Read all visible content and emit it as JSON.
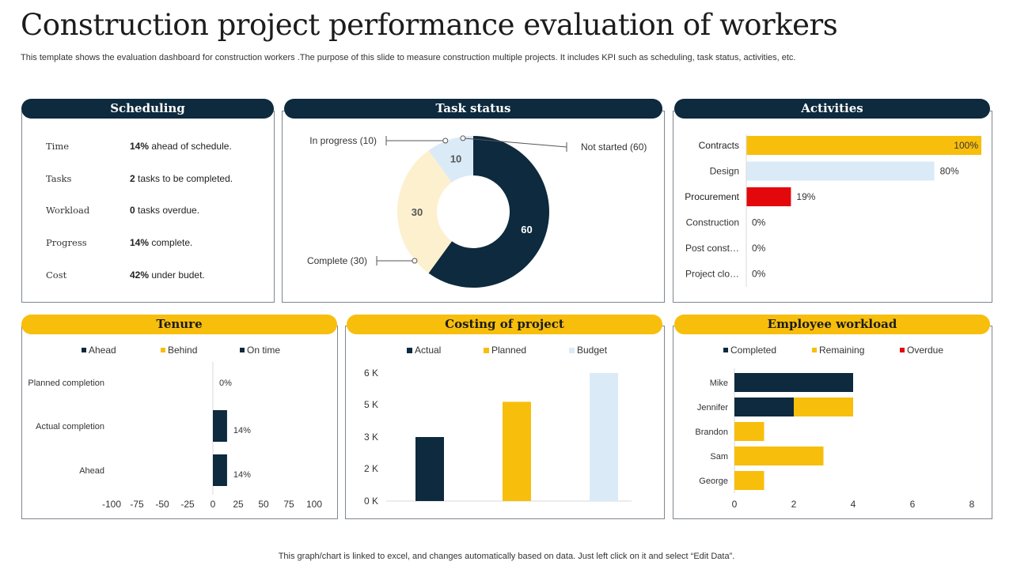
{
  "page": {
    "title": "Construction project performance evaluation of workers",
    "subtitle": "This template shows the evaluation dashboard for construction workers .The purpose of this slide to measure construction multiple projects. It includes KPI such as scheduling, task status, activities, etc.",
    "footer": "This graph/chart is linked to excel, and changes automatically based on data. Just left click on it and select “Edit Data”."
  },
  "colors": {
    "navy": "#0d2a3e",
    "gold": "#f8be0c",
    "light_blue": "#daeaf7",
    "cream": "#fdf0cf",
    "red": "#e3080c"
  },
  "scheduling": {
    "header": "Scheduling",
    "rows": [
      {
        "label": "Time",
        "value_bold": "14%",
        "value_text": " ahead of schedule."
      },
      {
        "label": "Tasks",
        "value_bold": "2",
        "value_text": " tasks to be completed."
      },
      {
        "label": "Workload",
        "value_bold": "0",
        "value_text": " tasks overdue."
      },
      {
        "label": "Progress",
        "value_bold": "14%",
        "value_text": " complete."
      },
      {
        "label": "Cost",
        "value_bold": "42%",
        "value_text": " under budet."
      }
    ]
  },
  "chart_data": [
    {
      "id": "task_status",
      "type": "pie",
      "donut": true,
      "title": "Task status",
      "slices": [
        {
          "name": "Not started",
          "value": 60,
          "label": "60",
          "callout": "Not started (60)",
          "color": "#0d2a3e"
        },
        {
          "name": "Complete",
          "value": 30,
          "label": "30",
          "callout": "Complete (30)",
          "color": "#fdf0cf"
        },
        {
          "name": "In progress",
          "value": 10,
          "label": "10",
          "callout": "In progress (10)",
          "color": "#daeaf7"
        }
      ]
    },
    {
      "id": "activities",
      "type": "bar",
      "orientation": "horizontal",
      "title": "Activities",
      "categories": [
        "Contracts",
        "Design",
        "Procurement",
        "Construction",
        "Post const…",
        "Project clo…"
      ],
      "values": [
        100,
        80,
        19,
        0,
        0,
        0
      ],
      "value_labels": [
        "100%",
        "80%",
        "19%",
        "0%",
        "0%",
        "0%"
      ],
      "colors": [
        "#f8be0c",
        "#daeaf7",
        "#e3080c",
        "#0d2a3e",
        "#0d2a3e",
        "#0d2a3e"
      ],
      "xlim": [
        0,
        100
      ]
    },
    {
      "id": "tenure",
      "type": "bar",
      "orientation": "horizontal",
      "title": "Tenure",
      "legend": [
        "Ahead",
        "Behind",
        "On time"
      ],
      "legend_colors": [
        "#0d2a3e",
        "#f8be0c",
        "#0d2a3e"
      ],
      "legend_position": "top",
      "categories": [
        "Planned completion",
        "Actual completion",
        "Ahead"
      ],
      "values": [
        0,
        14,
        14
      ],
      "value_labels": [
        "0%",
        "14%",
        "14%"
      ],
      "xlim": [
        -100,
        100
      ],
      "xticks": [
        "-100",
        "-75",
        "-50",
        "-25",
        "0",
        "25",
        "50",
        "75",
        "100"
      ]
    },
    {
      "id": "costing",
      "type": "bar",
      "title": "Costing of project",
      "legend": [
        "Actual",
        "Planned",
        "Budget"
      ],
      "legend_position": "top",
      "categories": [
        "Actual",
        "Planned",
        "Budget"
      ],
      "values": [
        3000,
        4650,
        6000
      ],
      "colors": [
        "#0d2a3e",
        "#f8be0c",
        "#daeaf7"
      ],
      "ylim": [
        0,
        6000
      ],
      "yticks": [
        "0 K",
        "2 K",
        "3 K",
        "5 K",
        "6 K"
      ]
    },
    {
      "id": "workload",
      "type": "bar",
      "orientation": "horizontal",
      "stacked": true,
      "title": "Employee workload",
      "legend_position": "top",
      "categories": [
        "Mike",
        "Jennifer",
        "Brandon",
        "Sam",
        "George"
      ],
      "series": [
        {
          "name": "Completed",
          "color": "#0d2a3e",
          "values": [
            4,
            2,
            0,
            0,
            0
          ]
        },
        {
          "name": "Remaining",
          "color": "#f8be0c",
          "values": [
            0,
            2,
            1,
            3,
            1
          ]
        },
        {
          "name": "Overdue",
          "color": "#e3080c",
          "values": [
            0,
            0,
            0,
            0,
            0
          ]
        }
      ],
      "xlim": [
        0,
        8
      ],
      "xticks": [
        "0",
        "2",
        "4",
        "6",
        "8"
      ]
    }
  ]
}
